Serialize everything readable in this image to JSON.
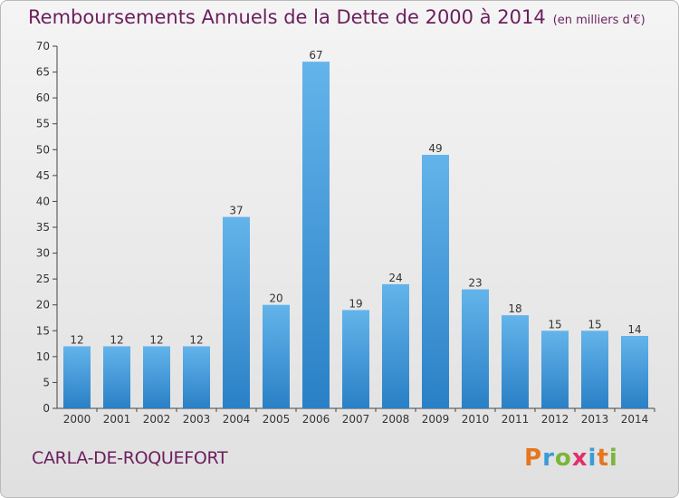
{
  "header": {
    "title": "Remboursements Annuels de la Dette de 2000 à 2014",
    "subtitle": "(en milliers d'€)"
  },
  "footer": {
    "city": "CARLA-DE-ROQUEFORT",
    "logo_text": "Proxiti",
    "logo_colors": [
      "#e5771e",
      "#3a9bd9",
      "#7bb53a",
      "#e1306c",
      "#3a9bd9",
      "#e5771e",
      "#7bb53a"
    ]
  },
  "colors": {
    "bar_light": "#63b4ea",
    "bar_dark": "#2a80c6",
    "axis": "#444444",
    "grid": "#d0d0d0"
  },
  "chart_data": {
    "type": "bar",
    "title": "Remboursements Annuels de la Dette de 2000 à 2014",
    "subtitle": "(en milliers d'€)",
    "xlabel": "",
    "ylabel": "",
    "categories": [
      "2000",
      "2001",
      "2002",
      "2003",
      "2004",
      "2005",
      "2006",
      "2007",
      "2008",
      "2009",
      "2010",
      "2011",
      "2012",
      "2013",
      "2014"
    ],
    "values": [
      12,
      12,
      12,
      12,
      37,
      20,
      67,
      19,
      24,
      49,
      23,
      18,
      15,
      15,
      14
    ],
    "ylim": [
      0,
      70
    ],
    "yticks": [
      0,
      5,
      10,
      15,
      20,
      25,
      30,
      35,
      40,
      45,
      50,
      55,
      60,
      65,
      70
    ],
    "grid": false,
    "data_labels": true
  }
}
